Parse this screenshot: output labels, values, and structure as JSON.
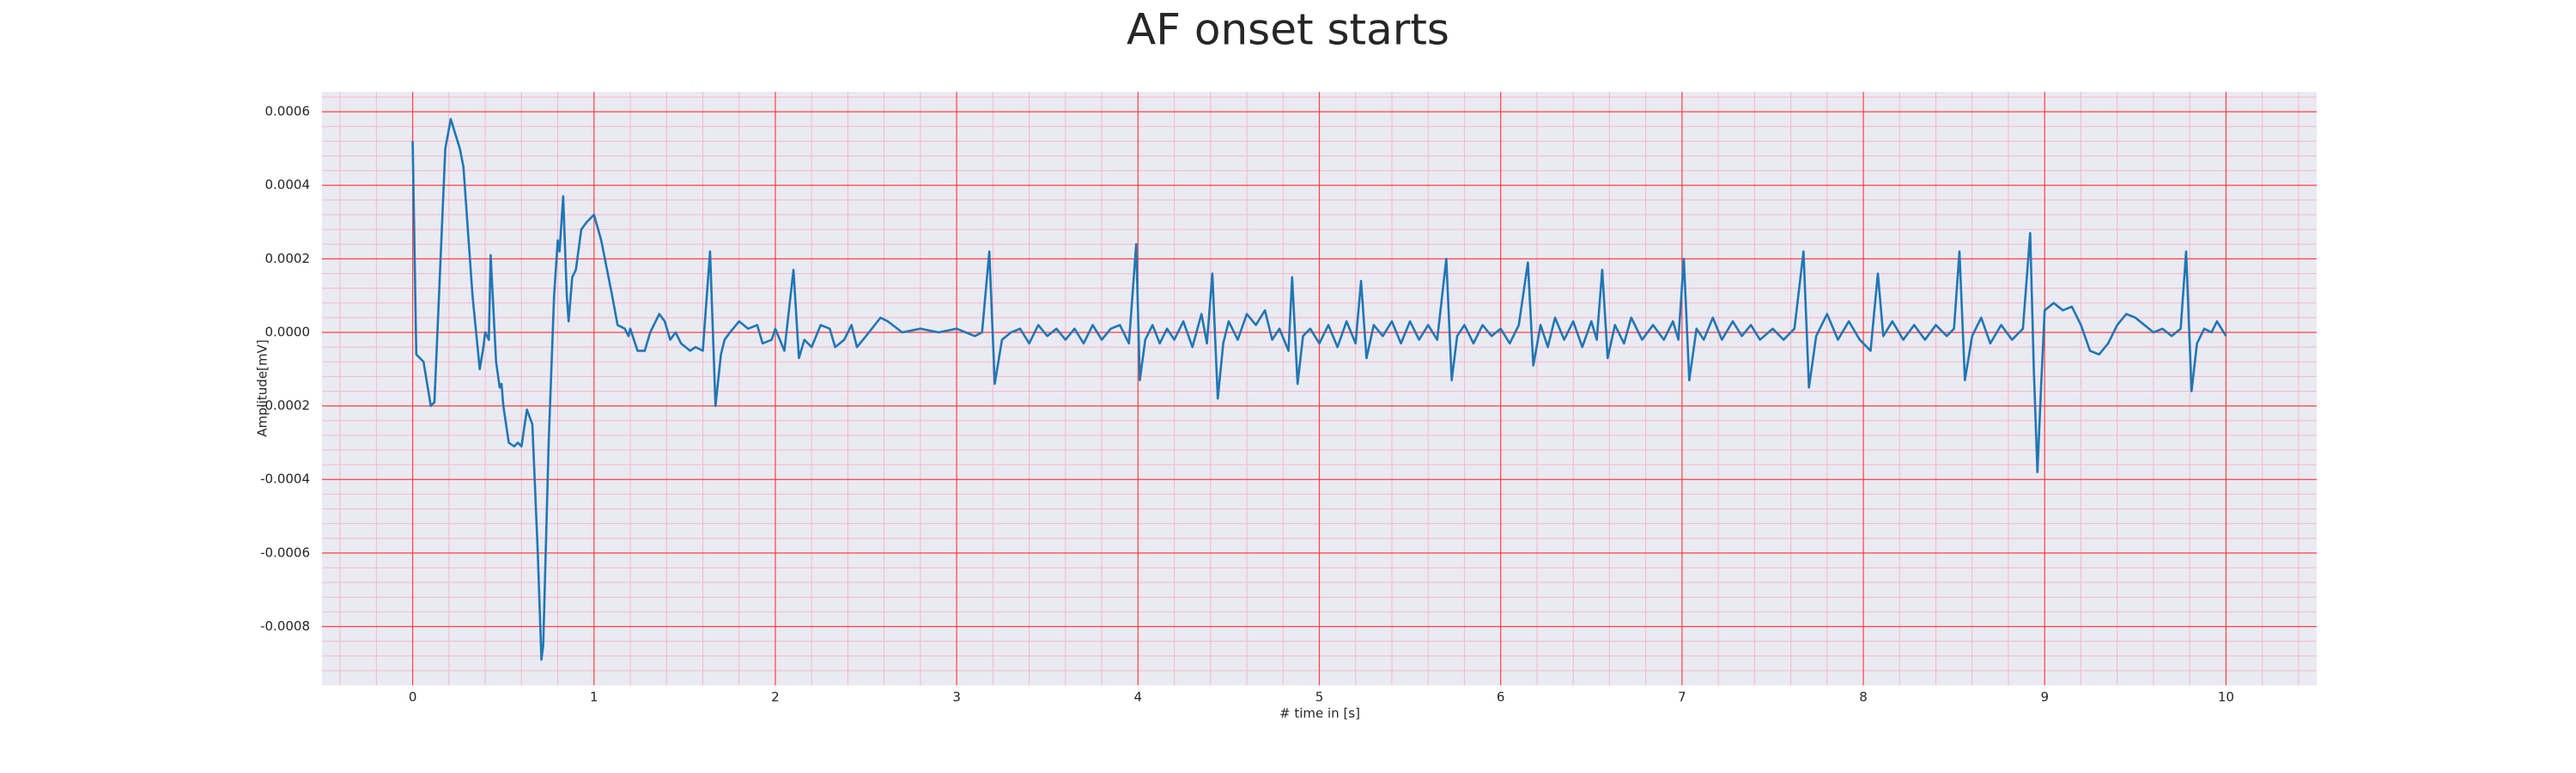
{
  "chart_data": {
    "type": "line",
    "title": "AF onset starts",
    "xlabel": "# time in [s]",
    "ylabel": "Amplitude[mV]",
    "xlim": [
      -0.5,
      10.5
    ],
    "ylim": [
      -0.00096,
      0.000654
    ],
    "xticks": [
      0,
      1,
      2,
      3,
      4,
      5,
      6,
      7,
      8,
      9,
      10
    ],
    "yticks": [
      {
        "value": -0.0008,
        "label": "-0.0008"
      },
      {
        "value": -0.0006,
        "label": "-0.0006"
      },
      {
        "value": -0.0004,
        "label": "-0.0004"
      },
      {
        "value": -0.0002,
        "label": "-0.0002"
      },
      {
        "value": 0,
        "label": "0.0000"
      },
      {
        "value": 0.0002,
        "label": "0.0002"
      },
      {
        "value": 0.0004,
        "label": "0.0004"
      },
      {
        "value": 0.0006,
        "label": "0.0006"
      }
    ],
    "grid": true,
    "grid_color": "#ff4040",
    "minor_grid": true,
    "minor_grid_color": "#f4b8c8",
    "background": "#eaeaf2",
    "color": "#1f77b4",
    "x": [
      0,
      0.02,
      0.04,
      0.06,
      0.1,
      0.12,
      0.18,
      0.21,
      0.26,
      0.28,
      0.33,
      0.37,
      0.39,
      0.4,
      0.42,
      0.43,
      0.46,
      0.48,
      0.49,
      0.5,
      0.53,
      0.56,
      0.58,
      0.6,
      0.63,
      0.66,
      0.69,
      0.71,
      0.72,
      0.75,
      0.78,
      0.8,
      0.81,
      0.83,
      0.85,
      0.86,
      0.88,
      0.9,
      0.93,
      0.96,
      1.0,
      1.04,
      1.1,
      1.13,
      1.17,
      1.19,
      1.2,
      1.24,
      1.28,
      1.31,
      1.36,
      1.39,
      1.42,
      1.45,
      1.48,
      1.53,
      1.56,
      1.6,
      1.64,
      1.67,
      1.7,
      1.72,
      1.75,
      1.8,
      1.85,
      1.9,
      1.93,
      1.98,
      2.0,
      2.05,
      2.1,
      2.13,
      2.16,
      2.2,
      2.25,
      2.3,
      2.33,
      2.38,
      2.42,
      2.45,
      2.5,
      2.58,
      2.62,
      2.7,
      2.8,
      2.9,
      3.0,
      3.1,
      3.14,
      3.18,
      3.21,
      3.25,
      3.3,
      3.35,
      3.4,
      3.45,
      3.5,
      3.55,
      3.6,
      3.65,
      3.7,
      3.75,
      3.8,
      3.85,
      3.9,
      3.95,
      3.99,
      4.01,
      4.04,
      4.08,
      4.12,
      4.16,
      4.2,
      4.25,
      4.3,
      4.35,
      4.38,
      4.41,
      4.44,
      4.47,
      4.5,
      4.55,
      4.6,
      4.65,
      4.7,
      4.74,
      4.78,
      4.83,
      4.85,
      4.88,
      4.91,
      4.95,
      5.0,
      5.05,
      5.1,
      5.15,
      5.2,
      5.23,
      5.26,
      5.3,
      5.35,
      5.4,
      5.45,
      5.5,
      5.55,
      5.6,
      5.65,
      5.7,
      5.73,
      5.76,
      5.8,
      5.85,
      5.9,
      5.95,
      6.0,
      6.05,
      6.1,
      6.15,
      6.18,
      6.22,
      6.26,
      6.3,
      6.35,
      6.4,
      6.45,
      6.5,
      6.53,
      6.56,
      6.59,
      6.63,
      6.68,
      6.72,
      6.78,
      6.84,
      6.9,
      6.95,
      6.98,
      7.01,
      7.04,
      7.08,
      7.12,
      7.17,
      7.22,
      7.28,
      7.33,
      7.38,
      7.43,
      7.5,
      7.56,
      7.62,
      7.67,
      7.7,
      7.74,
      7.8,
      7.86,
      7.92,
      7.98,
      8.04,
      8.08,
      8.11,
      8.16,
      8.22,
      8.28,
      8.34,
      8.4,
      8.46,
      8.5,
      8.53,
      8.56,
      8.6,
      8.65,
      8.7,
      8.76,
      8.82,
      8.88,
      8.92,
      8.94,
      8.96,
      8.98,
      9.0,
      9.05,
      9.1,
      9.15,
      9.2,
      9.25,
      9.3,
      9.35,
      9.4,
      9.45,
      9.5,
      9.55,
      9.6,
      9.65,
      9.7,
      9.75,
      9.78,
      9.81,
      9.84,
      9.88,
      9.92,
      9.95,
      10.0
    ],
    "values": [
      0.00052,
      -6e-05,
      -7e-05,
      -8e-05,
      -0.0002,
      -0.00019,
      0.0005,
      0.00058,
      0.0005,
      0.00045,
      0.0001,
      -0.0001,
      -4e-05,
      0,
      -2e-05,
      0.00021,
      -8e-05,
      -0.00015,
      -0.00014,
      -0.0002,
      -0.0003,
      -0.00031,
      -0.0003,
      -0.00031,
      -0.00021,
      -0.00025,
      -0.0006,
      -0.00089,
      -0.00085,
      -0.0003,
      0.0001,
      0.00025,
      0.00022,
      0.00037,
      0.0001,
      3e-05,
      0.00015,
      0.00017,
      0.00028,
      0.0003,
      0.00032,
      0.00025,
      0.0001,
      2e-05,
      1e-05,
      -1e-05,
      1e-05,
      -5e-05,
      -5e-05,
      0,
      5e-05,
      3e-05,
      -2e-05,
      0,
      -3e-05,
      -5e-05,
      -4e-05,
      -5e-05,
      0.00022,
      -0.0002,
      -6e-05,
      -2e-05,
      0,
      3e-05,
      1e-05,
      2e-05,
      -3e-05,
      -2e-05,
      1e-05,
      -5e-05,
      0.00017,
      -7e-05,
      -2e-05,
      -4e-05,
      2e-05,
      1e-05,
      -4e-05,
      -2e-05,
      2e-05,
      -4e-05,
      -1e-05,
      4e-05,
      3e-05,
      0,
      1e-05,
      0,
      1e-05,
      -1e-05,
      0,
      0.00022,
      -0.00014,
      -2e-05,
      0,
      1e-05,
      -3e-05,
      2e-05,
      -1e-05,
      1e-05,
      -2e-05,
      1e-05,
      -3e-05,
      2e-05,
      -2e-05,
      1e-05,
      2e-05,
      -3e-05,
      0.00024,
      -0.00013,
      -2e-05,
      2e-05,
      -3e-05,
      1e-05,
      -2e-05,
      3e-05,
      -4e-05,
      5e-05,
      -3e-05,
      0.00016,
      -0.00018,
      -3e-05,
      3e-05,
      -2e-05,
      5e-05,
      2e-05,
      6e-05,
      -2e-05,
      1e-05,
      -5e-05,
      0.00015,
      -0.00014,
      -1e-05,
      1e-05,
      -3e-05,
      2e-05,
      -4e-05,
      3e-05,
      -3e-05,
      0.00014,
      -7e-05,
      2e-05,
      -1e-05,
      3e-05,
      -3e-05,
      3e-05,
      -2e-05,
      2e-05,
      -2e-05,
      0.0002,
      -0.00013,
      -1e-05,
      2e-05,
      -3e-05,
      2e-05,
      -1e-05,
      1e-05,
      -3e-05,
      2e-05,
      0.00019,
      -9e-05,
      2e-05,
      -4e-05,
      4e-05,
      -2e-05,
      3e-05,
      -4e-05,
      3e-05,
      -2e-05,
      0.00017,
      -7e-05,
      2e-05,
      -3e-05,
      4e-05,
      -2e-05,
      2e-05,
      -2e-05,
      3e-05,
      -2e-05,
      0.0002,
      -0.00013,
      1e-05,
      -2e-05,
      4e-05,
      -2e-05,
      3e-05,
      -1e-05,
      2e-05,
      -2e-05,
      1e-05,
      -2e-05,
      1e-05,
      0.00022,
      -0.00015,
      -1e-05,
      5e-05,
      -2e-05,
      3e-05,
      -2e-05,
      -5e-05,
      0.00016,
      -1e-05,
      3e-05,
      -2e-05,
      2e-05,
      -2e-05,
      2e-05,
      -1e-05,
      1e-05,
      0.00022,
      -0.00013,
      -1e-05,
      4e-05,
      -3e-05,
      2e-05,
      -2e-05,
      1e-05,
      0.00027,
      -0.0001,
      -0.00038,
      -0.00015,
      6e-05,
      8e-05,
      6e-05,
      7e-05,
      2e-05,
      -5e-05,
      -6e-05,
      -3e-05,
      2e-05,
      5e-05,
      4e-05,
      2e-05,
      0,
      1e-05,
      -1e-05,
      1e-05,
      0.00022,
      -0.00016,
      -3e-05,
      1e-05,
      0,
      3e-05,
      -1e-05
    ]
  }
}
